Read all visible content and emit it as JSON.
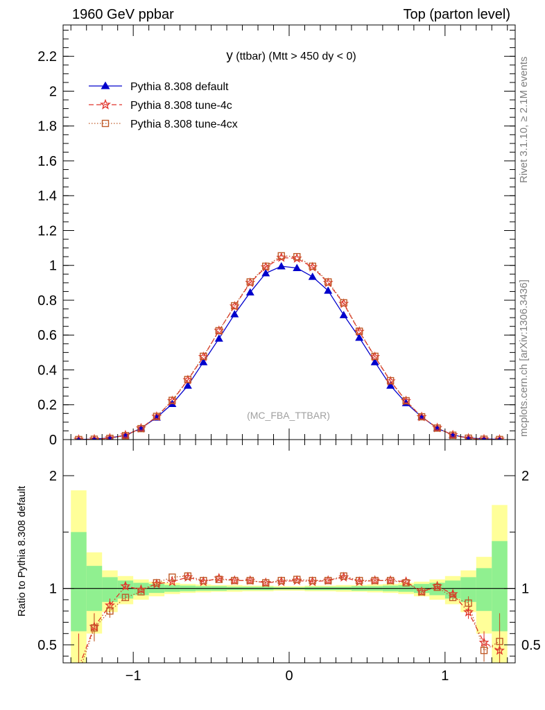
{
  "header": {
    "left": "1960 GeV ppbar",
    "right": "Top (parton level)"
  },
  "side_text": {
    "rivet": "Rivet 3.1.10, ≥ 2.1M events",
    "mcplots": "mcplots.cern.ch [arXiv:1306.3436]"
  },
  "plot": {
    "title_main": "y",
    "title_rest": " (ttbar) (Mtt > 450 dy < 0)",
    "watermark": "(MC_FBA_TTBAR)",
    "ratio_ylabel": "Ratio to Pythia 8.308 default"
  },
  "colors": {
    "default": "#0000cc",
    "tune4c": "#e0332a",
    "tune4cx": "#bf5a28",
    "band_inner": "#90f090",
    "band_outer": "#ffff99"
  },
  "chart_data": [
    {
      "type": "line",
      "ylim": [
        0,
        2.38
      ],
      "xlim": [
        -1.45,
        1.45
      ],
      "yticks": [
        0,
        0.2,
        0.4,
        0.6,
        0.8,
        1,
        1.2,
        1.4,
        1.6,
        1.8,
        2,
        2.2
      ],
      "ytick_labels": [
        "0",
        "0.2",
        "0.4",
        "0.6",
        "0.8",
        "1",
        "1.2",
        "1.4",
        "1.6",
        "1.8",
        "2",
        "2.2"
      ],
      "x": [
        -1.35,
        -1.25,
        -1.15,
        -1.05,
        -0.95,
        -0.85,
        -0.75,
        -0.65,
        -0.55,
        -0.45,
        -0.35,
        -0.25,
        -0.15,
        -0.05,
        0.05,
        0.15,
        0.25,
        0.35,
        0.45,
        0.55,
        0.65,
        0.75,
        0.85,
        0.95,
        1.05,
        1.15,
        1.25,
        1.35
      ],
      "series": [
        {
          "name": "Pythia 8.308 default",
          "marker": "triangle",
          "dash": "solid",
          "values": [
            0.0005,
            0.003,
            0.009,
            0.025,
            0.065,
            0.127,
            0.205,
            0.31,
            0.445,
            0.58,
            0.72,
            0.845,
            0.955,
            0.995,
            0.985,
            0.935,
            0.855,
            0.715,
            0.585,
            0.445,
            0.31,
            0.21,
            0.13,
            0.065,
            0.027,
            0.009,
            0.004,
            0.001
          ]
        },
        {
          "name": "Pythia 8.308 tune-4c",
          "marker": "star",
          "dash": "dashed",
          "values": [
            0.0002,
            0.002,
            0.008,
            0.025,
            0.065,
            0.132,
            0.222,
            0.342,
            0.475,
            0.625,
            0.765,
            0.9,
            0.99,
            1.045,
            1.04,
            0.99,
            0.9,
            0.78,
            0.62,
            0.475,
            0.335,
            0.222,
            0.13,
            0.067,
            0.026,
            0.007,
            0.002,
            0.0004
          ]
        },
        {
          "name": "Pythia 8.308 tune-4cx",
          "marker": "open-square",
          "dash": "dotted",
          "values": [
            0.0002,
            0.002,
            0.007,
            0.023,
            0.063,
            0.133,
            0.225,
            0.345,
            0.478,
            0.625,
            0.768,
            0.905,
            0.995,
            1.055,
            1.05,
            0.995,
            0.905,
            0.785,
            0.622,
            0.478,
            0.338,
            0.223,
            0.131,
            0.066,
            0.025,
            0.008,
            0.002,
            0.0005
          ]
        }
      ]
    },
    {
      "type": "line",
      "ylabel": "Ratio to Pythia 8.308 default",
      "ylim": [
        0.34,
        2.32
      ],
      "xlim": [
        -1.45,
        1.45
      ],
      "xticks": [
        -1,
        0,
        1
      ],
      "xtick_labels": [
        "−1",
        "0",
        "1"
      ],
      "yticks": [
        0.5,
        1,
        2
      ],
      "ytick_labels": [
        "0.5",
        "1",
        "2"
      ],
      "x": [
        -1.35,
        -1.25,
        -1.15,
        -1.05,
        -0.95,
        -0.85,
        -0.75,
        -0.65,
        -0.55,
        -0.45,
        -0.35,
        -0.25,
        -0.15,
        -0.05,
        0.05,
        0.15,
        0.25,
        0.35,
        0.45,
        0.55,
        0.65,
        0.75,
        0.85,
        0.95,
        1.05,
        1.15,
        1.25,
        1.35
      ],
      "bands": {
        "inner_lo": [
          0.62,
          0.8,
          0.88,
          0.91,
          0.94,
          0.96,
          0.97,
          0.975,
          0.98,
          0.98,
          0.985,
          0.985,
          0.985,
          0.99,
          0.99,
          0.985,
          0.985,
          0.985,
          0.98,
          0.98,
          0.975,
          0.97,
          0.96,
          0.94,
          0.91,
          0.88,
          0.8,
          0.62
        ],
        "inner_hi": [
          1.5,
          1.2,
          1.1,
          1.07,
          1.05,
          1.04,
          1.03,
          1.025,
          1.02,
          1.02,
          1.015,
          1.015,
          1.015,
          1.01,
          1.01,
          1.015,
          1.015,
          1.015,
          1.02,
          1.02,
          1.025,
          1.03,
          1.04,
          1.05,
          1.07,
          1.1,
          1.18,
          1.42
        ],
        "outer_lo": [
          0.3,
          0.6,
          0.79,
          0.86,
          0.9,
          0.93,
          0.95,
          0.96,
          0.965,
          0.97,
          0.97,
          0.975,
          0.975,
          0.98,
          0.98,
          0.975,
          0.975,
          0.97,
          0.97,
          0.965,
          0.96,
          0.95,
          0.93,
          0.9,
          0.86,
          0.79,
          0.6,
          0.3
        ],
        "outer_hi": [
          1.87,
          1.32,
          1.16,
          1.11,
          1.08,
          1.06,
          1.05,
          1.04,
          1.035,
          1.03,
          1.03,
          1.025,
          1.025,
          1.02,
          1.02,
          1.025,
          1.025,
          1.03,
          1.03,
          1.035,
          1.04,
          1.05,
          1.06,
          1.08,
          1.11,
          1.16,
          1.28,
          1.74
        ]
      },
      "reference": 1,
      "series": [
        {
          "name": "Pythia 8.308 tune-4c",
          "values": [
            0.3,
            0.66,
            0.85,
            1.02,
            0.99,
            1.04,
            1.06,
            1.1,
            1.06,
            1.09,
            1.07,
            1.07,
            1.05,
            1.06,
            1.07,
            1.06,
            1.07,
            1.1,
            1.06,
            1.07,
            1.07,
            1.06,
            0.97,
            1.02,
            0.95,
            0.79,
            0.52,
            0.45
          ],
          "err": [
            0.3,
            0.12,
            0.06,
            0.03,
            0.02,
            0.015,
            0.01,
            0.01,
            0.01,
            0.01,
            0.01,
            0.01,
            0.01,
            0.01,
            0.01,
            0.01,
            0.01,
            0.01,
            0.01,
            0.01,
            0.01,
            0.01,
            0.015,
            0.02,
            0.03,
            0.06,
            0.1,
            0.25
          ]
        },
        {
          "name": "Pythia 8.308 tune-4cx",
          "values": [
            0.25,
            0.65,
            0.8,
            0.92,
            0.97,
            1.05,
            1.1,
            1.11,
            1.07,
            1.08,
            1.07,
            1.07,
            1.05,
            1.07,
            1.08,
            1.07,
            1.07,
            1.11,
            1.07,
            1.07,
            1.07,
            1.05,
            0.97,
            1.01,
            0.92,
            0.87,
            0.45,
            0.53
          ],
          "err": [
            0.3,
            0.12,
            0.06,
            0.03,
            0.02,
            0.015,
            0.01,
            0.01,
            0.01,
            0.01,
            0.01,
            0.01,
            0.01,
            0.01,
            0.01,
            0.01,
            0.01,
            0.01,
            0.01,
            0.01,
            0.01,
            0.01,
            0.015,
            0.02,
            0.03,
            0.06,
            0.1,
            0.25
          ]
        }
      ]
    }
  ]
}
